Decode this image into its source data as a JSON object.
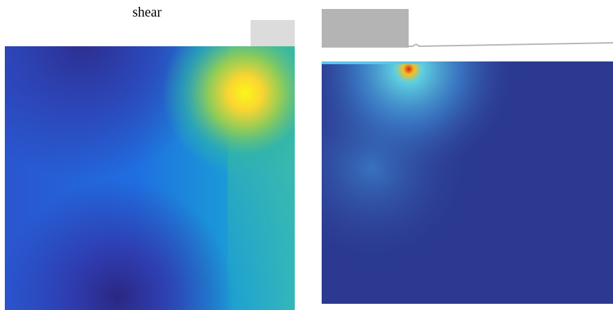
{
  "title": "shear"
}
